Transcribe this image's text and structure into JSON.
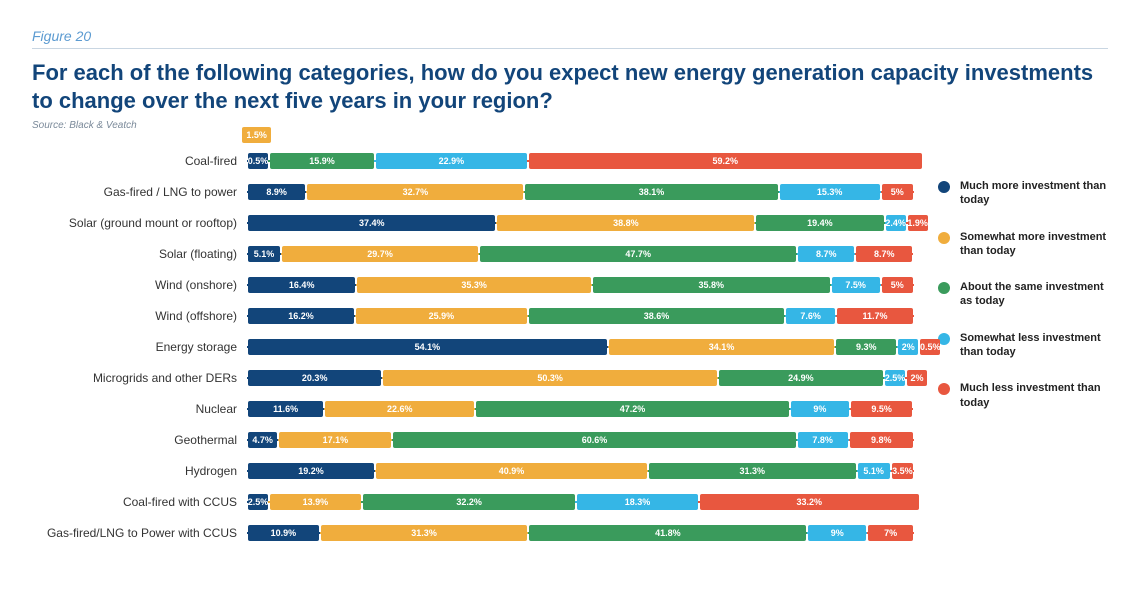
{
  "figure_label": "Figure 20",
  "title": "For each of the following categories, how do you expect new energy generation capacity investments to change over the next five years in your region?",
  "source": "Source: Black & Veatch",
  "chart": {
    "type": "stacked-bar-horizontal",
    "background_color": "#ffffff",
    "title_color": "#12457a",
    "title_fontsize": 22,
    "label_fontsize": 12,
    "tag_fontsize": 9,
    "colors": {
      "much_more": "#12457a",
      "somewhat_more": "#f0ad3d",
      "about_same": "#3a9b5c",
      "somewhat_less": "#35b6e6",
      "much_less": "#e8573f"
    },
    "legend": [
      {
        "key": "much_more",
        "label": "Much more investment than today"
      },
      {
        "key": "somewhat_more",
        "label": "Somewhat more investment than today"
      },
      {
        "key": "about_same",
        "label": "About the same investment as today"
      },
      {
        "key": "somewhat_less",
        "label": "Somewhat less investment than today"
      },
      {
        "key": "much_less",
        "label": "Much less investment than today"
      }
    ],
    "rows": [
      {
        "label": "Coal-fired",
        "values": [
          0.5,
          1.5,
          15.9,
          22.9,
          59.2
        ],
        "overflow_index": 1
      },
      {
        "label": "Gas-fired / LNG to power",
        "values": [
          8.9,
          32.7,
          38.1,
          15.3,
          5.0
        ]
      },
      {
        "label": "Solar (ground mount or rooftop)",
        "values": [
          37.4,
          38.8,
          19.4,
          2.4,
          1.9
        ]
      },
      {
        "label": "Solar (floating)",
        "values": [
          5.1,
          29.7,
          47.7,
          8.7,
          8.7
        ]
      },
      {
        "label": "Wind (onshore)",
        "values": [
          16.4,
          35.3,
          35.8,
          7.5,
          5.0
        ]
      },
      {
        "label": "Wind (offshore)",
        "values": [
          16.2,
          25.9,
          38.6,
          7.6,
          11.7
        ]
      },
      {
        "label": "Energy storage",
        "values": [
          54.1,
          34.1,
          9.3,
          2.0,
          0.5
        ]
      },
      {
        "label": "Microgrids and other DERs",
        "values": [
          20.3,
          50.3,
          24.9,
          2.5,
          2.0
        ]
      },
      {
        "label": "Nuclear",
        "values": [
          11.6,
          22.6,
          47.2,
          9.0,
          9.5
        ]
      },
      {
        "label": "Geothermal",
        "values": [
          4.7,
          17.1,
          60.6,
          7.8,
          9.8
        ]
      },
      {
        "label": "Hydrogen",
        "values": [
          19.2,
          40.9,
          31.3,
          5.1,
          3.5
        ]
      },
      {
        "label": "Coal-fired with CCUS",
        "values": [
          2.5,
          13.9,
          32.2,
          18.3,
          33.2
        ]
      },
      {
        "label": "Gas-fired/LNG to Power with CCUS",
        "values": [
          10.9,
          31.3,
          41.8,
          9.0,
          7.0
        ]
      }
    ]
  }
}
